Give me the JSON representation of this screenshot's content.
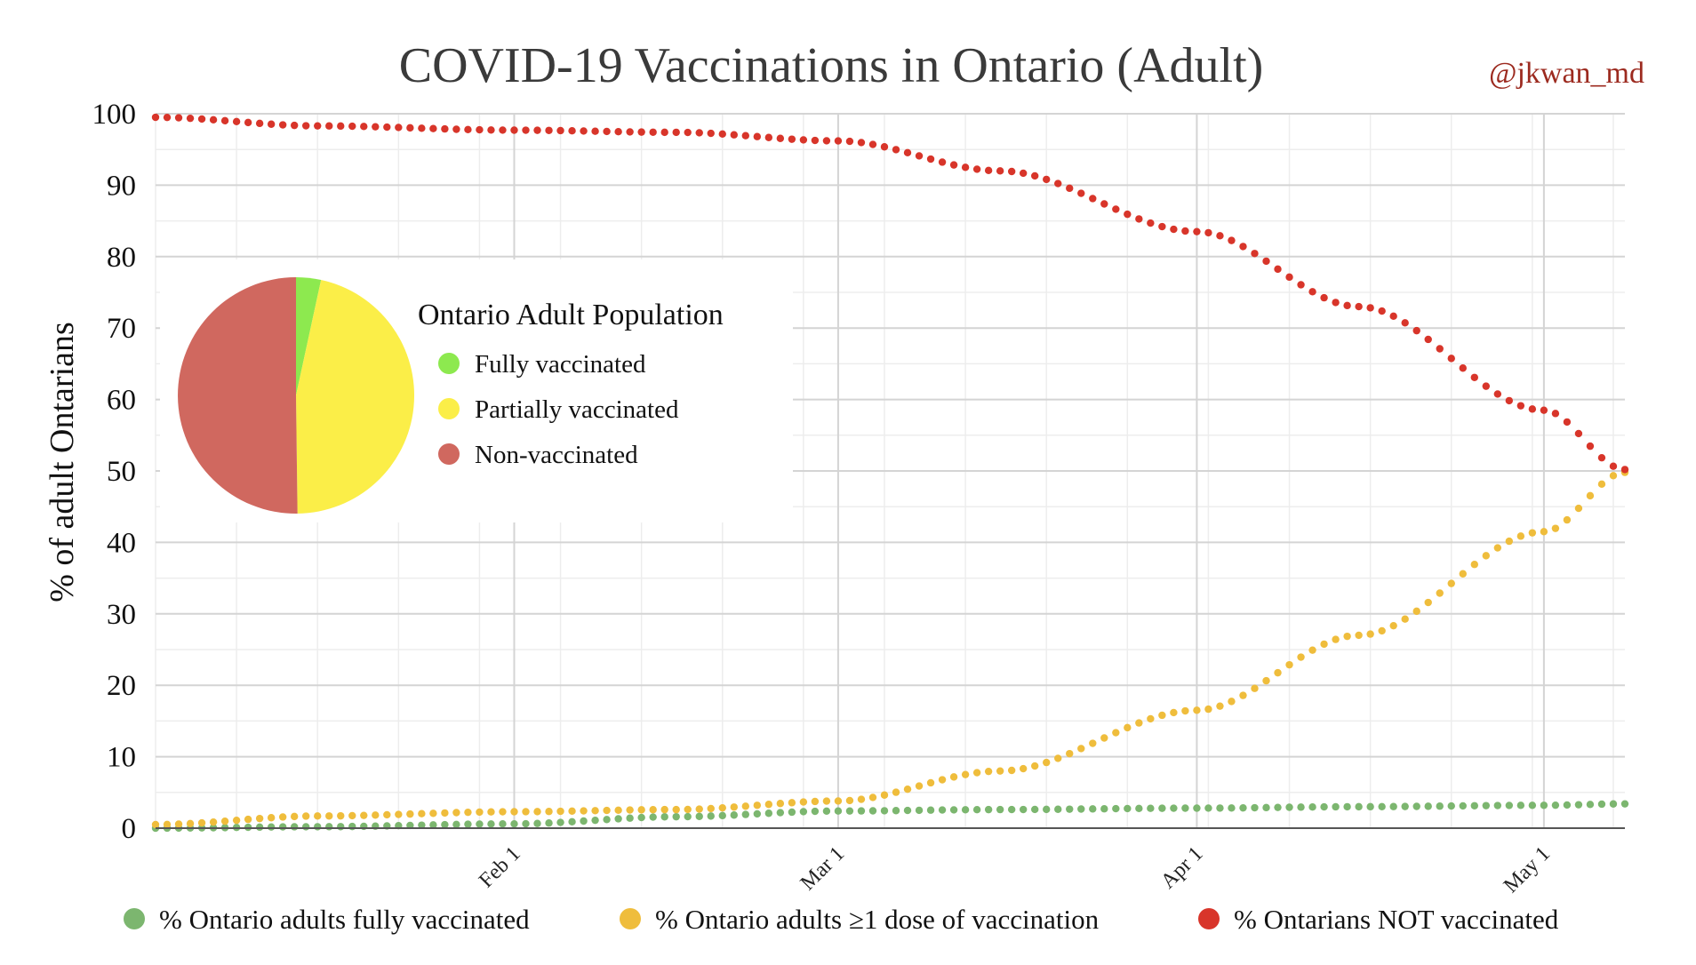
{
  "chart_data": {
    "type": "scatter",
    "title": "COVID-19 Vaccinations in Ontario (Adult)",
    "credit": "@jkwan_md",
    "ylabel": "% of adult Ontarians",
    "ylim": [
      0,
      100
    ],
    "y_ticks": [
      0,
      10,
      20,
      30,
      40,
      50,
      60,
      70,
      80,
      90,
      100
    ],
    "x_start": "2021-01-01",
    "x_end": "2021-05-08",
    "x_ticks": [
      {
        "label": "Feb 1",
        "date": "2021-02-01"
      },
      {
        "label": "Mar 1",
        "date": "2021-03-01"
      },
      {
        "label": "Apr 1",
        "date": "2021-04-01"
      },
      {
        "label": "May 1",
        "date": "2021-05-01"
      }
    ],
    "grid": true,
    "legend_position": "bottom",
    "series": [
      {
        "name": "% Ontario adults fully vaccinated",
        "color": "#7cb66f",
        "points": [
          {
            "date": "2021-01-01",
            "value": 0.0
          },
          {
            "date": "2021-01-15",
            "value": 0.2
          },
          {
            "date": "2021-02-01",
            "value": 0.6
          },
          {
            "date": "2021-02-15",
            "value": 1.6
          },
          {
            "date": "2021-03-01",
            "value": 2.4
          },
          {
            "date": "2021-03-15",
            "value": 2.6
          },
          {
            "date": "2021-04-01",
            "value": 2.8
          },
          {
            "date": "2021-04-15",
            "value": 3.0
          },
          {
            "date": "2021-05-01",
            "value": 3.2
          },
          {
            "date": "2021-05-08",
            "value": 3.4
          }
        ]
      },
      {
        "name": "% Ontario adults ≥1 dose of vaccination",
        "color": "#efbd3c",
        "points": [
          {
            "date": "2021-01-01",
            "value": 0.5
          },
          {
            "date": "2021-01-15",
            "value": 1.7
          },
          {
            "date": "2021-02-01",
            "value": 2.3
          },
          {
            "date": "2021-02-15",
            "value": 2.6
          },
          {
            "date": "2021-03-01",
            "value": 3.8
          },
          {
            "date": "2021-03-15",
            "value": 8.0
          },
          {
            "date": "2021-04-01",
            "value": 16.5
          },
          {
            "date": "2021-04-15",
            "value": 27.0
          },
          {
            "date": "2021-05-01",
            "value": 41.5
          },
          {
            "date": "2021-05-08",
            "value": 49.8
          }
        ]
      },
      {
        "name": "% Ontarians NOT vaccinated",
        "color": "#d8352a",
        "points": [
          {
            "date": "2021-01-01",
            "value": 99.5
          },
          {
            "date": "2021-01-15",
            "value": 98.3
          },
          {
            "date": "2021-02-01",
            "value": 97.7
          },
          {
            "date": "2021-02-15",
            "value": 97.4
          },
          {
            "date": "2021-03-01",
            "value": 96.2
          },
          {
            "date": "2021-03-15",
            "value": 92.0
          },
          {
            "date": "2021-04-01",
            "value": 83.5
          },
          {
            "date": "2021-04-15",
            "value": 73.0
          },
          {
            "date": "2021-05-01",
            "value": 58.5
          },
          {
            "date": "2021-05-08",
            "value": 50.2
          }
        ]
      }
    ],
    "inset_pie": {
      "title": "Ontario Adult Population",
      "slices": [
        {
          "label": "Fully vaccinated",
          "value": 3.4,
          "color": "#8de94f"
        },
        {
          "label": "Partially vaccinated",
          "value": 46.4,
          "color": "#fbee48"
        },
        {
          "label": "Non-vaccinated",
          "value": 50.2,
          "color": "#d0685f"
        }
      ]
    }
  }
}
